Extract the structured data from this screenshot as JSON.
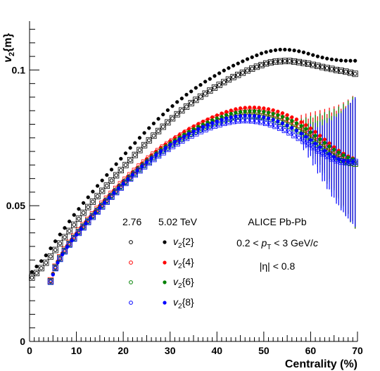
{
  "chart_data": {
    "type": "scatter",
    "xlabel": "Centrality (%)",
    "ylabel": "v2{m}",
    "xlim": [
      0,
      70
    ],
    "ylim": [
      0,
      0.118
    ],
    "x_ticks": [
      "0",
      "10",
      "20",
      "30",
      "40",
      "50",
      "60",
      "70"
    ],
    "y_ticks": [
      "0",
      "0.05",
      "0.1"
    ],
    "grid": false,
    "legend": {
      "col_276": "2.76",
      "col_502": "5.02 TeV",
      "rows": [
        "v2{2}",
        "v2{4}",
        "v2{6}",
        "v2{8}"
      ]
    },
    "annotations": {
      "system": "ALICE Pb-Pb",
      "pt_cut": "0.2 < pT < 3 GeV/c",
      "eta_cut": "|η| < 0.8"
    },
    "colors": {
      "v2{2}": "#000000",
      "v2{4}": "#ff0000",
      "v2{6}": "#008000",
      "v2{8}": "#0000ff"
    },
    "series": [
      {
        "name": "v2{2} 5.02 TeV",
        "marker": "filled",
        "color": "#000000",
        "x": [
          0.5,
          1.5,
          2.5,
          3.5,
          4.5,
          5.5,
          6.5,
          7.5,
          8.5,
          9.5,
          10.5,
          11.5,
          12.5,
          13.5,
          14.5,
          15.5,
          16.5,
          17.5,
          18.5,
          19.5,
          20.5,
          21.5,
          22.5,
          23.5,
          24.5,
          25.5,
          26.5,
          27.5,
          28.5,
          29.5,
          30.5,
          31.5,
          32.5,
          33.5,
          34.5,
          35.5,
          36.5,
          37.5,
          38.5,
          39.5,
          40.5,
          41.5,
          42.5,
          43.5,
          44.5,
          45.5,
          46.5,
          47.5,
          48.5,
          49.5,
          50.5,
          51.5,
          52.5,
          53.5,
          54.5,
          55.5,
          56.5,
          57.5,
          58.5,
          59.5,
          60.5,
          61.5,
          62.5,
          63.5,
          64.5,
          65.5,
          66.5,
          67.5,
          68.5,
          69.5
        ],
        "y": [
          0.0256,
          0.0276,
          0.0296,
          0.0317,
          0.0343,
          0.0369,
          0.0394,
          0.0418,
          0.0442,
          0.0466,
          0.0488,
          0.051,
          0.0531,
          0.0552,
          0.0573,
          0.0593,
          0.0613,
          0.0633,
          0.0653,
          0.0673,
          0.0693,
          0.0713,
          0.0731,
          0.075,
          0.0768,
          0.0786,
          0.0803,
          0.082,
          0.0836,
          0.0852,
          0.0867,
          0.0882,
          0.0895,
          0.0909,
          0.0921,
          0.0934,
          0.0945,
          0.0957,
          0.0967,
          0.0978,
          0.0988,
          0.0998,
          0.1007,
          0.1016,
          0.1024,
          0.1032,
          0.104,
          0.1047,
          0.1054,
          0.1061,
          0.1066,
          0.107,
          0.1073,
          0.1075,
          0.1075,
          0.1074,
          0.1072,
          0.1069,
          0.1065,
          0.106,
          0.1055,
          0.105,
          0.1046,
          0.1042,
          0.1039,
          0.1037,
          0.1035,
          0.1034,
          0.1034,
          0.1034
        ]
      },
      {
        "name": "v2{2} 2.76",
        "marker": "open",
        "color": "#000000",
        "x": [
          0.5,
          1.5,
          2.5,
          3.5,
          4.5,
          5.5,
          6.5,
          7.5,
          8.5,
          9.5,
          10.5,
          11.5,
          12.5,
          13.5,
          14.5,
          15.5,
          16.5,
          17.5,
          18.5,
          19.5,
          20.5,
          21.5,
          22.5,
          23.5,
          24.5,
          25.5,
          26.5,
          27.5,
          28.5,
          29.5,
          30.5,
          31.5,
          32.5,
          33.5,
          34.5,
          35.5,
          36.5,
          37.5,
          38.5,
          39.5,
          40.5,
          41.5,
          42.5,
          43.5,
          44.5,
          45.5,
          46.5,
          47.5,
          48.5,
          49.5,
          50.5,
          51.5,
          52.5,
          53.5,
          54.5,
          55.5,
          56.5,
          57.5,
          58.5,
          59.5,
          60.5,
          61.5,
          62.5,
          63.5,
          64.5,
          65.5,
          66.5,
          67.5,
          68.5,
          69.5
        ],
        "y": [
          0.0235,
          0.0252,
          0.027,
          0.029,
          0.0313,
          0.0337,
          0.0361,
          0.0384,
          0.0407,
          0.043,
          0.0452,
          0.0474,
          0.0495,
          0.0515,
          0.0535,
          0.0555,
          0.0574,
          0.0593,
          0.0612,
          0.0631,
          0.065,
          0.0668,
          0.0687,
          0.0705,
          0.0723,
          0.0741,
          0.0758,
          0.0775,
          0.0791,
          0.0807,
          0.0822,
          0.0837,
          0.0851,
          0.0865,
          0.0878,
          0.089,
          0.0902,
          0.0913,
          0.0924,
          0.0935,
          0.0945,
          0.0955,
          0.0965,
          0.0974,
          0.0982,
          0.099,
          0.0998,
          0.1005,
          0.1012,
          0.1018,
          0.1024,
          0.1028,
          0.1031,
          0.1032,
          0.1033,
          0.1033,
          0.1031,
          0.1029,
          0.1026,
          0.1023,
          0.1019,
          0.1015,
          0.1011,
          0.1007,
          0.1004,
          0.1,
          0.0997,
          0.0994,
          0.099,
          0.0986
        ]
      },
      {
        "name": "v2{4} 5.02 TeV",
        "marker": "filled",
        "color": "#ff0000",
        "x": [
          5,
          6,
          7,
          8,
          9,
          10,
          11,
          12,
          13,
          14,
          15,
          16,
          17,
          18,
          19,
          20,
          21,
          22,
          23,
          24,
          25,
          26,
          27,
          28,
          29,
          30,
          31,
          32,
          33,
          34,
          35,
          36,
          37,
          38,
          39,
          40,
          41,
          42,
          43,
          44,
          45,
          46,
          47,
          48,
          49,
          50,
          51,
          52,
          53,
          54,
          55,
          56,
          57,
          58,
          59,
          60,
          61,
          62,
          63,
          64,
          65,
          66,
          67,
          68,
          69
        ],
        "y": [
          0.025,
          0.0295,
          0.0325,
          0.0352,
          0.0376,
          0.0398,
          0.042,
          0.044,
          0.046,
          0.048,
          0.05,
          0.052,
          0.0538,
          0.0556,
          0.0574,
          0.0591,
          0.0608,
          0.0624,
          0.064,
          0.0656,
          0.0672,
          0.0686,
          0.07,
          0.0714,
          0.0726,
          0.0738,
          0.075,
          0.0761,
          0.0772,
          0.0782,
          0.0792,
          0.0801,
          0.081,
          0.0818,
          0.0826,
          0.0833,
          0.084,
          0.0846,
          0.0851,
          0.0856,
          0.0859,
          0.0861,
          0.0862,
          0.0862,
          0.0861,
          0.0859,
          0.0856,
          0.0852,
          0.0847,
          0.0841,
          0.0834,
          0.0826,
          0.0818,
          0.0808,
          0.0797,
          0.0785,
          0.0772,
          0.0758,
          0.0744,
          0.073,
          0.0716,
          0.0703,
          0.0692,
          0.0682,
          0.0675
        ]
      },
      {
        "name": "v2{4} 2.76",
        "marker": "open",
        "color": "#ff0000",
        "x": [
          4.5,
          5.5,
          6.5,
          7.5,
          8.5,
          9.5,
          10.5,
          11.5,
          12.5,
          13.5,
          14.5,
          15.5,
          16.5,
          17.5,
          18.5,
          19.5,
          20.5,
          21.5,
          22.5,
          23.5,
          24.5,
          25.5,
          26.5,
          27.5,
          28.5,
          29.5,
          30.5,
          31.5,
          32.5,
          33.5,
          34.5,
          35.5,
          36.5,
          37.5,
          38.5,
          39.5,
          40.5,
          41.5,
          42.5,
          43.5,
          44.5,
          45.5,
          46.5,
          47.5,
          48.5,
          49.5,
          50.5,
          51.5,
          52.5,
          53.5,
          54.5,
          55.5,
          56.5,
          57.5,
          58.5,
          59.5,
          60.5,
          61.5,
          62.5,
          63.5,
          64.5,
          65.5,
          66.5,
          67.5,
          68.5,
          69.5
        ],
        "y": [
          0.0225,
          0.0275,
          0.031,
          0.0338,
          0.0363,
          0.0386,
          0.0408,
          0.0428,
          0.0448,
          0.0468,
          0.0488,
          0.0507,
          0.0526,
          0.0544,
          0.0562,
          0.0579,
          0.0596,
          0.0612,
          0.0628,
          0.0644,
          0.0659,
          0.0674,
          0.0688,
          0.0701,
          0.0714,
          0.0726,
          0.0737,
          0.0748,
          0.0759,
          0.0769,
          0.0779,
          0.0788,
          0.0797,
          0.0805,
          0.0813,
          0.082,
          0.0826,
          0.0832,
          0.0837,
          0.0841,
          0.0844,
          0.0847,
          0.0848,
          0.0848,
          0.0847,
          0.0845,
          0.0842,
          0.0838,
          0.0833,
          0.0827,
          0.082,
          0.0812,
          0.0803,
          0.0793,
          0.0782,
          0.077,
          0.0757,
          0.0744,
          0.073,
          0.0716,
          0.0703,
          0.069,
          0.0678,
          0.0668,
          0.066,
          0.0655
        ]
      },
      {
        "name": "v2{6} 5.02 TeV",
        "marker": "filled",
        "color": "#008000",
        "x": [
          5,
          6,
          7,
          8,
          9,
          10,
          11,
          12,
          13,
          14,
          15,
          16,
          17,
          18,
          19,
          20,
          21,
          22,
          23,
          24,
          25,
          26,
          27,
          28,
          29,
          30,
          31,
          32,
          33,
          34,
          35,
          36,
          37,
          38,
          39,
          40,
          41,
          42,
          43,
          44,
          45,
          46,
          47,
          48,
          49,
          50,
          51,
          52,
          53,
          54,
          55,
          56,
          57,
          58,
          59,
          60,
          61,
          62,
          63,
          64,
          65,
          66,
          67,
          68,
          69
        ],
        "y": [
          0.0248,
          0.0292,
          0.0322,
          0.0349,
          0.0373,
          0.0395,
          0.0416,
          0.0436,
          0.0456,
          0.0476,
          0.0495,
          0.0514,
          0.0532,
          0.055,
          0.0567,
          0.0584,
          0.0601,
          0.0617,
          0.0633,
          0.0649,
          0.0664,
          0.0678,
          0.0692,
          0.0705,
          0.0717,
          0.0729,
          0.074,
          0.0751,
          0.0762,
          0.0772,
          0.0782,
          0.0791,
          0.0799,
          0.0807,
          0.0815,
          0.0822,
          0.0828,
          0.0834,
          0.0839,
          0.0843,
          0.0846,
          0.0848,
          0.0849,
          0.0849,
          0.0848,
          0.0846,
          0.0843,
          0.0839,
          0.0834,
          0.0828,
          0.0821,
          0.0813,
          0.0804,
          0.0794,
          0.0783,
          0.0771,
          0.0758,
          0.0745,
          0.0732,
          0.0719,
          0.0707,
          0.0696,
          0.0686,
          0.0678,
          0.0672
        ]
      },
      {
        "name": "v2{6} 2.76",
        "marker": "open",
        "color": "#008000",
        "x": [
          4.5,
          5.5,
          6.5,
          7.5,
          8.5,
          9.5,
          10.5,
          11.5,
          12.5,
          13.5,
          14.5,
          15.5,
          16.5,
          17.5,
          18.5,
          19.5,
          20.5,
          21.5,
          22.5,
          23.5,
          24.5,
          25.5,
          26.5,
          27.5,
          28.5,
          29.5,
          30.5,
          31.5,
          32.5,
          33.5,
          34.5,
          35.5,
          36.5,
          37.5,
          38.5,
          39.5,
          40.5,
          41.5,
          42.5,
          43.5,
          44.5,
          45.5,
          46.5,
          47.5,
          48.5,
          49.5,
          50.5,
          51.5,
          52.5,
          53.5,
          54.5,
          55.5,
          56.5,
          57.5,
          58.5,
          59.5,
          60.5,
          61.5,
          62.5,
          63.5,
          64.5,
          65.5,
          66.5,
          67.5,
          68.5,
          69.5
        ],
        "y": [
          0.0222,
          0.0272,
          0.0306,
          0.0334,
          0.0359,
          0.0381,
          0.0403,
          0.0423,
          0.0443,
          0.0462,
          0.0481,
          0.05,
          0.0518,
          0.0536,
          0.0553,
          0.057,
          0.0587,
          0.0603,
          0.0619,
          0.0634,
          0.0649,
          0.0663,
          0.0677,
          0.069,
          0.0703,
          0.0715,
          0.0726,
          0.0737,
          0.0747,
          0.0757,
          0.0766,
          0.0775,
          0.0783,
          0.0791,
          0.0798,
          0.0805,
          0.0811,
          0.0816,
          0.0821,
          0.0825,
          0.0828,
          0.083,
          0.0831,
          0.0831,
          0.083,
          0.0828,
          0.0825,
          0.0821,
          0.0816,
          0.081,
          0.0803,
          0.0795,
          0.0786,
          0.0776,
          0.0765,
          0.0753,
          0.0741,
          0.0728,
          0.0715,
          0.0702,
          0.069,
          0.0679,
          0.067,
          0.0663,
          0.0658,
          0.0655
        ]
      },
      {
        "name": "v2{8} 5.02 TeV",
        "marker": "filled",
        "color": "#0000ff",
        "x": [
          5,
          6,
          7,
          8,
          9,
          10,
          11,
          12,
          13,
          14,
          15,
          16,
          17,
          18,
          19,
          20,
          21,
          22,
          23,
          24,
          25,
          26,
          27,
          28,
          29,
          30,
          31,
          32,
          33,
          34,
          35,
          36,
          37,
          38,
          39,
          40,
          41,
          42,
          43,
          44,
          45,
          46,
          47,
          48,
          49,
          50,
          51,
          52,
          53,
          54,
          55,
          56,
          57,
          58,
          59,
          60,
          61,
          62,
          63,
          64,
          65,
          66,
          67,
          68,
          69
        ],
        "y": [
          0.0246,
          0.029,
          0.032,
          0.0347,
          0.0371,
          0.0393,
          0.0414,
          0.0434,
          0.0454,
          0.0473,
          0.0492,
          0.0511,
          0.0529,
          0.0547,
          0.0564,
          0.0581,
          0.0598,
          0.0614,
          0.063,
          0.0645,
          0.066,
          0.0674,
          0.0687,
          0.07,
          0.0712,
          0.0724,
          0.0735,
          0.0745,
          0.0755,
          0.0765,
          0.0774,
          0.0783,
          0.0791,
          0.0798,
          0.0805,
          0.0811,
          0.0817,
          0.0822,
          0.0826,
          0.0829,
          0.0831,
          0.0832,
          0.0832,
          0.0831,
          0.0829,
          0.0826,
          0.0822,
          0.0817,
          0.0811,
          0.0804,
          0.0796,
          0.0787,
          0.0777,
          0.0766,
          0.0754,
          0.0742,
          0.0729,
          0.0716,
          0.0703,
          0.0691,
          0.068,
          0.0671,
          0.0665,
          0.0662,
          0.0662
        ]
      },
      {
        "name": "v2{8} 2.76",
        "marker": "open",
        "color": "#0000ff",
        "x": [
          4.5,
          5.5,
          6.5,
          7.5,
          8.5,
          9.5,
          10.5,
          11.5,
          12.5,
          13.5,
          14.5,
          15.5,
          16.5,
          17.5,
          18.5,
          19.5,
          20.5,
          21.5,
          22.5,
          23.5,
          24.5,
          25.5,
          26.5,
          27.5,
          28.5,
          29.5,
          30.5,
          31.5,
          32.5,
          33.5,
          34.5,
          35.5,
          36.5,
          37.5,
          38.5,
          39.5,
          40.5,
          41.5,
          42.5,
          43.5,
          44.5,
          45.5,
          46.5,
          47.5,
          48.5,
          49.5,
          50.5,
          51.5,
          52.5,
          53.5,
          54.5,
          55.5,
          56.5,
          57.5,
          58.5,
          59.5,
          60.5,
          61.5,
          62.5,
          63.5,
          64.5,
          65.5,
          66.5,
          67.5,
          68.5,
          69.5
        ],
        "y": [
          0.022,
          0.027,
          0.0304,
          0.0332,
          0.0357,
          0.0379,
          0.04,
          0.042,
          0.044,
          0.0459,
          0.0478,
          0.0497,
          0.0515,
          0.0533,
          0.055,
          0.0567,
          0.0584,
          0.06,
          0.0615,
          0.063,
          0.0645,
          0.0659,
          0.0672,
          0.0685,
          0.0697,
          0.0709,
          0.072,
          0.073,
          0.074,
          0.075,
          0.0759,
          0.0767,
          0.0775,
          0.0782,
          0.0789,
          0.0795,
          0.08,
          0.0805,
          0.0809,
          0.0812,
          0.0814,
          0.0815,
          0.0815,
          0.0814,
          0.0812,
          0.0809,
          0.0805,
          0.08,
          0.0794,
          0.0787,
          0.0779,
          0.077,
          0.076,
          0.075,
          0.0739,
          0.0728,
          0.0716,
          0.0704,
          0.0693,
          0.0683,
          0.0674,
          0.0667,
          0.0662,
          0.066,
          0.066,
          0.0661
        ]
      }
    ]
  }
}
